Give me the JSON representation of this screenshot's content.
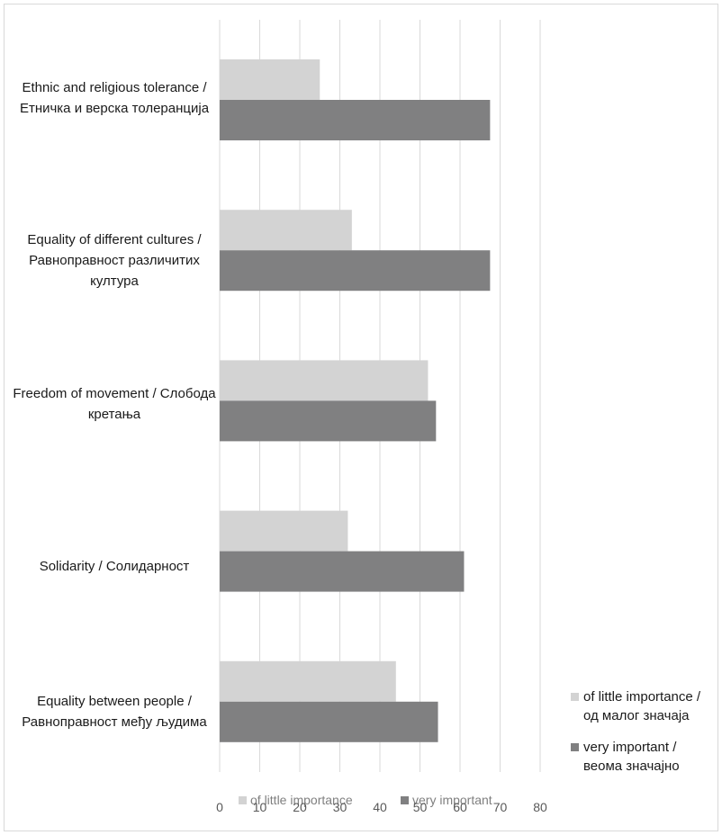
{
  "chart_data": {
    "type": "bar",
    "orientation": "horizontal",
    "categories": [
      "Ethnic and religious tolerance / Етничка и верска толеранција",
      "Equality of different cultures / Равноправност различитих култура",
      "Freedom of movement / Слобода кретања",
      "Solidarity / Солидарност",
      "Equality between people / Равноправност међу људима"
    ],
    "series": [
      {
        "name": "of little importance",
        "color": "#d3d3d3",
        "values": [
          25,
          33,
          52,
          32,
          44
        ]
      },
      {
        "name": "very important",
        "color": "#808081",
        "values": [
          67.5,
          67.5,
          54,
          61,
          54.5
        ]
      }
    ],
    "xlim": [
      0,
      80
    ],
    "x_ticks": [
      "0",
      "10",
      "20",
      "30",
      "40",
      "50",
      "60",
      "70",
      "80"
    ],
    "grid": "vertical",
    "legends": {
      "bottom": [
        "of little importance",
        "very important"
      ],
      "right": [
        "of little importance / од малог значаја",
        "very important / веома значајно"
      ]
    }
  }
}
